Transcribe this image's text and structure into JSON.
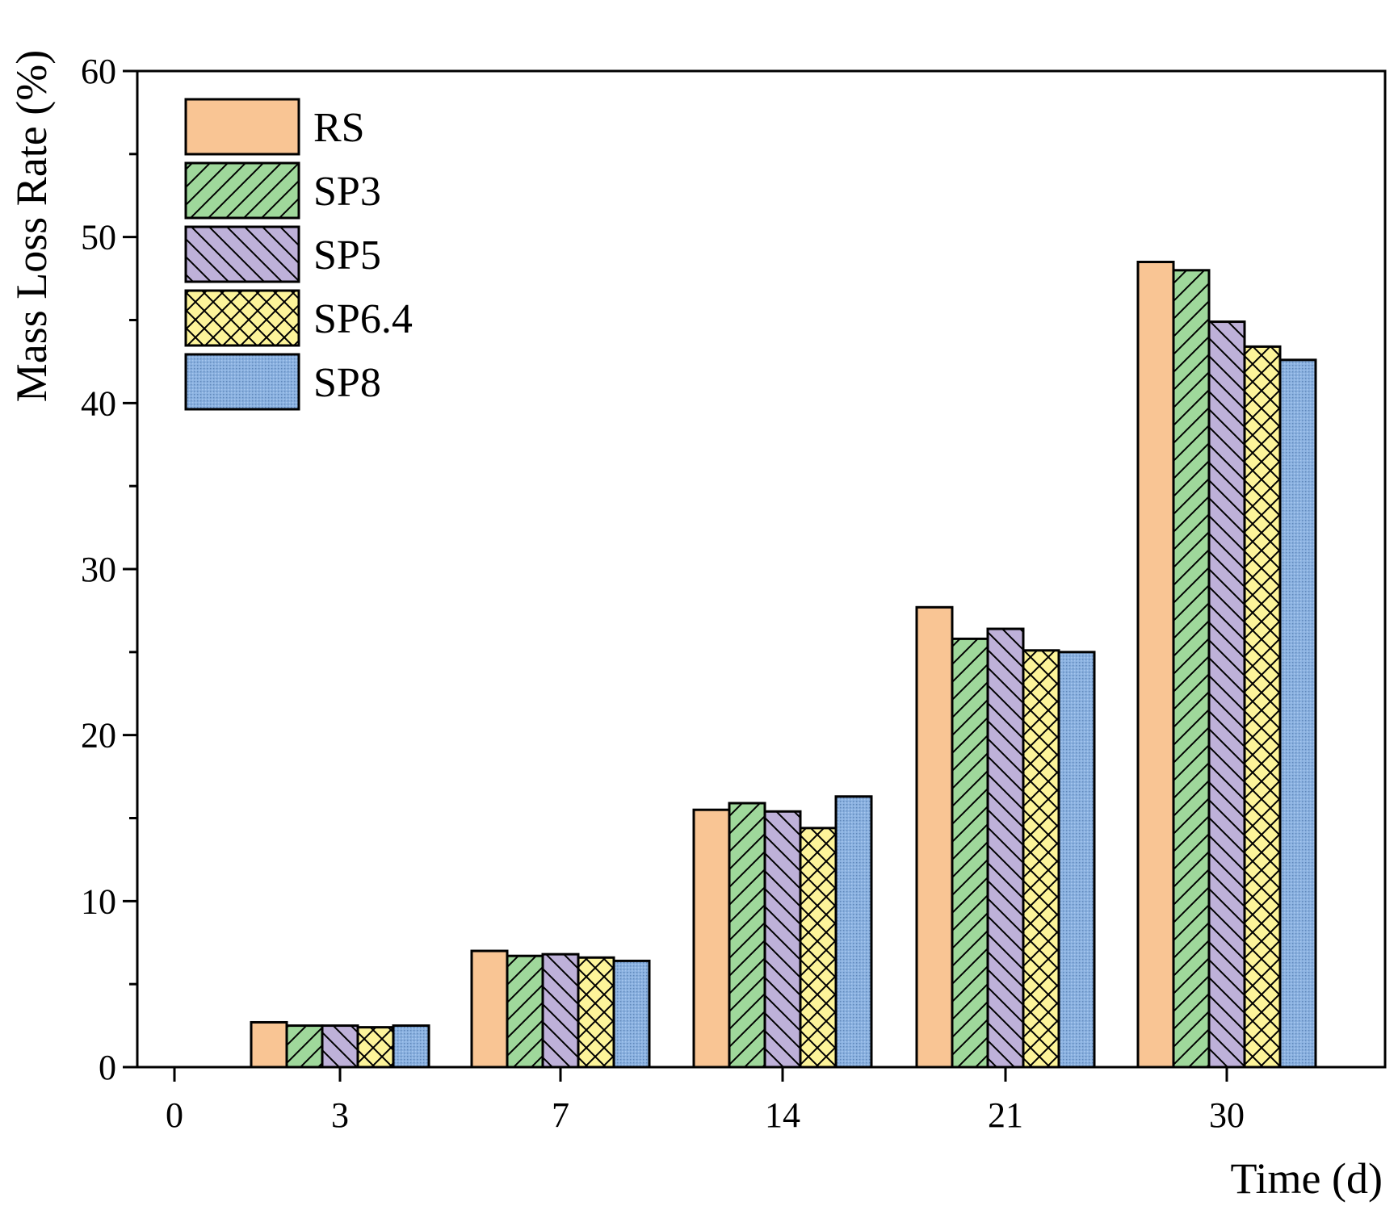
{
  "chart_data": {
    "type": "bar",
    "title": "",
    "xlabel": "Time (d)",
    "ylabel": "Mass Loss Rate (%)",
    "ylim": [
      0,
      60
    ],
    "yticks": [
      "0",
      "10",
      "20",
      "30",
      "40",
      "50",
      "60"
    ],
    "x_tick_labels": [
      "0",
      "3",
      "7",
      "14",
      "21",
      "30"
    ],
    "categories": [
      "3",
      "7",
      "14",
      "21",
      "30"
    ],
    "legend_position": "top-left",
    "grid": false,
    "series": [
      {
        "name": "RS",
        "color": "#f9c594",
        "pattern": "solid",
        "values": [
          2.7,
          7.0,
          15.5,
          27.7,
          48.5
        ]
      },
      {
        "name": "SP3",
        "color": "#9fd89b",
        "pattern": "diag-up",
        "values": [
          2.5,
          6.7,
          15.9,
          25.8,
          48.0
        ]
      },
      {
        "name": "SP5",
        "color": "#beb1d9",
        "pattern": "diag-down",
        "values": [
          2.5,
          6.8,
          15.4,
          26.4,
          44.9
        ]
      },
      {
        "name": "SP6.4",
        "color": "#fdf49a",
        "pattern": "cross",
        "values": [
          2.4,
          6.6,
          14.4,
          25.1,
          43.4
        ]
      },
      {
        "name": "SP8",
        "color": "#8ab1e0",
        "pattern": "dots",
        "values": [
          2.5,
          6.4,
          16.3,
          25.0,
          42.6
        ]
      }
    ]
  }
}
